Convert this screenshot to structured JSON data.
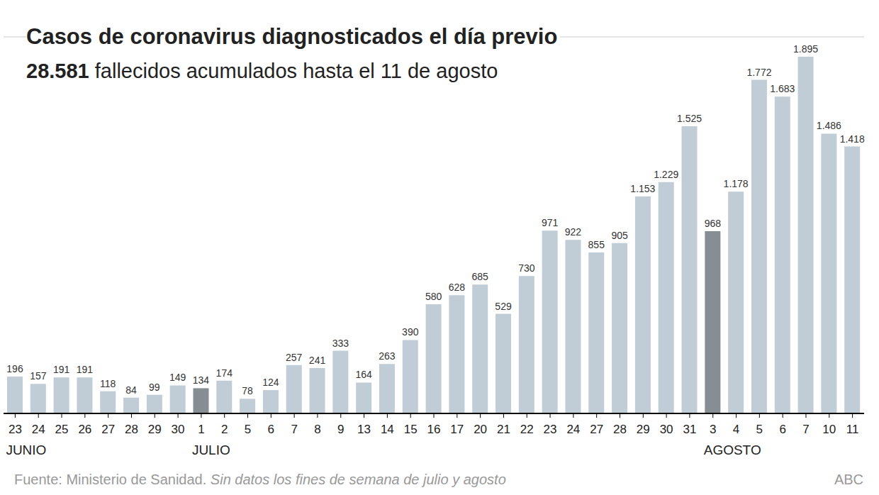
{
  "chart_data": {
    "type": "bar",
    "title": "Casos de coronavirus diagnosticados el día previo",
    "subtitle": "28.581 fallecidos acumulados hasta el 11 de agosto",
    "categories": [
      "23",
      "24",
      "25",
      "26",
      "27",
      "28",
      "29",
      "30",
      "1",
      "2",
      "5",
      "6",
      "7",
      "8",
      "9",
      "13",
      "14",
      "15",
      "16",
      "17",
      "20",
      "21",
      "22",
      "23",
      "24",
      "27",
      "28",
      "29",
      "30",
      "31",
      "3",
      "4",
      "5",
      "6",
      "7",
      "10",
      "11"
    ],
    "months": [
      "JUNIO",
      null,
      null,
      null,
      null,
      null,
      null,
      null,
      "JULIO",
      null,
      null,
      null,
      null,
      null,
      null,
      null,
      null,
      null,
      null,
      null,
      null,
      null,
      null,
      null,
      null,
      null,
      null,
      null,
      null,
      null,
      "AGOSTO",
      null,
      null,
      null,
      null,
      null,
      null
    ],
    "values": [
      196,
      157,
      191,
      191,
      118,
      84,
      99,
      149,
      134,
      174,
      78,
      124,
      257,
      241,
      333,
      164,
      263,
      390,
      580,
      628,
      685,
      529,
      730,
      971,
      922,
      855,
      905,
      1153,
      1229,
      1525,
      968,
      1178,
      1772,
      1683,
      1895,
      1486,
      1418
    ],
    "value_labels": [
      "196",
      "157",
      "191",
      "191",
      "118",
      "84",
      "99",
      "149",
      "134",
      "174",
      "78",
      "124",
      "257",
      "241",
      "333",
      "164",
      "263",
      "390",
      "580",
      "628",
      "685",
      "529",
      "730",
      "971",
      "922",
      "855",
      "905",
      "1.153",
      "1.229",
      "1.525",
      "968",
      "1.178",
      "1.772",
      "1.683",
      "1.895",
      "1.486",
      "1.418"
    ],
    "colors": [
      "#c1cdd6",
      "#c1cdd6",
      "#c1cdd6",
      "#c1cdd6",
      "#c1cdd6",
      "#c1cdd6",
      "#c1cdd6",
      "#c1cdd6",
      "#868d93",
      "#c1cdd6",
      "#c1cdd6",
      "#c1cdd6",
      "#c1cdd6",
      "#c1cdd6",
      "#c1cdd6",
      "#c1cdd6",
      "#c1cdd6",
      "#c1cdd6",
      "#c1cdd6",
      "#c1cdd6",
      "#c1cdd6",
      "#c1cdd6",
      "#c1cdd6",
      "#c1cdd6",
      "#c1cdd6",
      "#c1cdd6",
      "#c1cdd6",
      "#c1cdd6",
      "#c1cdd6",
      "#c1cdd6",
      "#868d93",
      "#c1cdd6",
      "#c1cdd6",
      "#c1cdd6",
      "#c1cdd6",
      "#c1cdd6",
      "#c1cdd6"
    ],
    "ylim": [
      0,
      2000
    ],
    "yticks": [
      0,
      500,
      1000,
      1500,
      2000
    ],
    "grid": true,
    "data_labels": true,
    "tick_labels": "x",
    "annotations": {
      "source": "Fuente: Ministerio de Sanidad.",
      "note": "Sin datos los fines de semana de julio y agosto",
      "credit": "ABC"
    }
  }
}
